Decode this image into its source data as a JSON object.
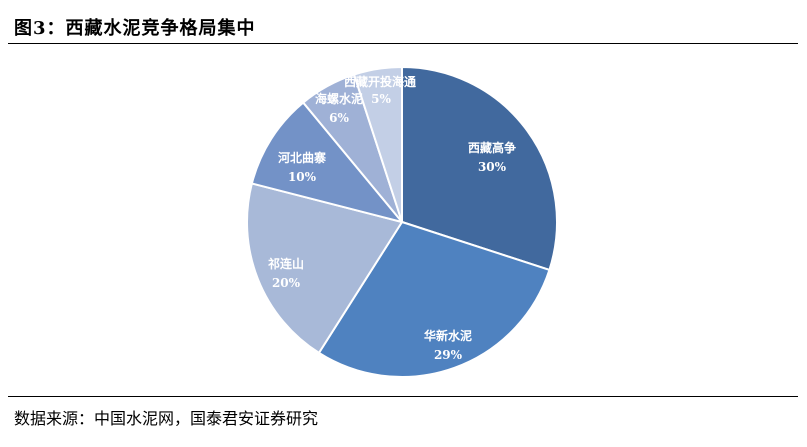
{
  "header": {
    "title": "图3：西藏水泥竞争格局集中"
  },
  "footer": {
    "source": "数据来源：中国水泥网，国泰君安证券研究"
  },
  "chart_data": {
    "type": "pie",
    "title": "图3：西藏水泥竞争格局集中",
    "start_angle_deg": 0,
    "direction": "clockwise",
    "slices": [
      {
        "name": "西藏高争",
        "value": 30,
        "label": "30%",
        "color": "#41699e",
        "label_color": "#ffffff"
      },
      {
        "name": "华新水泥",
        "value": 29,
        "label": "29%",
        "color": "#4f82c0",
        "label_color": "#ffffff"
      },
      {
        "name": "祁连山",
        "value": 20,
        "label": "20%",
        "color": "#a8b9d8",
        "label_color": "#ffffff"
      },
      {
        "name": "河北曲寨",
        "value": 10,
        "label": "10%",
        "color": "#7392c7",
        "label_color": "#ffffff"
      },
      {
        "name": "海螺水泥",
        "value": 6,
        "label": "6%",
        "color": "#9fb1d6",
        "label_color": "#ffffff"
      },
      {
        "name": "西藏开投海通",
        "value": 5,
        "label": "5%",
        "color": "#c3cfe6",
        "label_color": "#ffffff"
      }
    ]
  }
}
